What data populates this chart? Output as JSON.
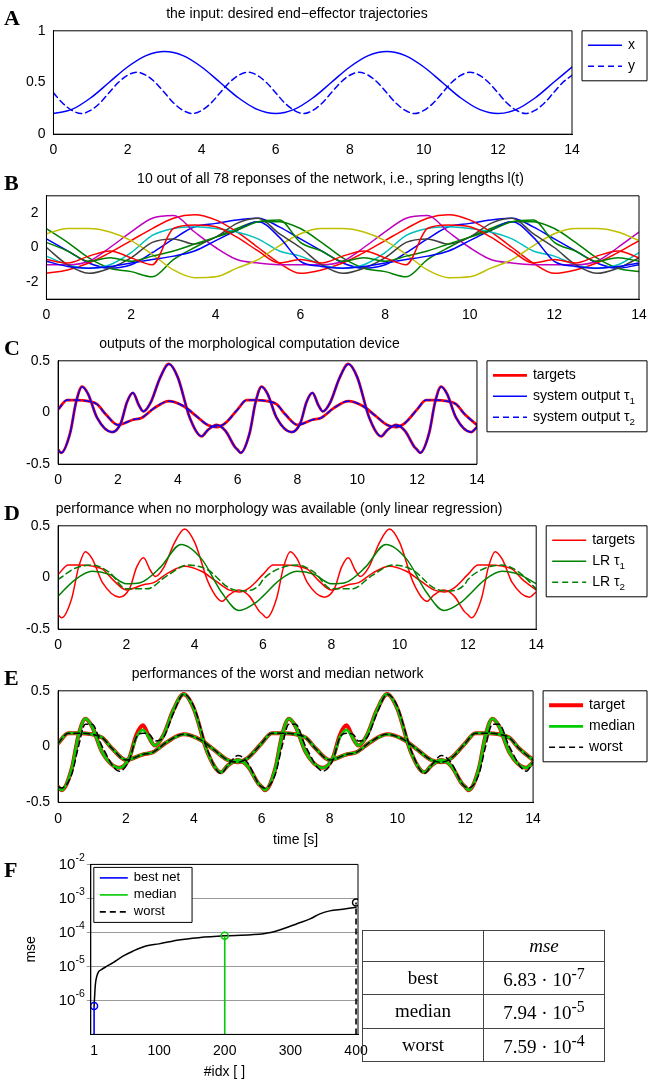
{
  "chart_data": [
    {
      "type": "line",
      "title": "the input: desired end−effector trajectories",
      "annotations": [
        "A"
      ],
      "x": [
        0,
        0.5,
        1,
        1.5,
        2,
        2.5,
        3,
        3.5,
        4,
        4.5,
        5,
        5.5,
        6,
        6.5,
        7,
        7.5,
        8,
        8.5,
        9,
        9.5,
        10,
        10.5,
        11,
        11.5,
        12,
        12.5,
        13,
        13.5,
        14
      ],
      "xlim": [
        0,
        14
      ],
      "xticks": [
        0,
        2,
        4,
        6,
        8,
        10,
        12,
        14
      ],
      "ylim": [
        0,
        1
      ],
      "yticks": [
        0,
        0.5,
        1
      ],
      "legend": "right",
      "series": [
        {
          "name": "x",
          "color": "#0000ff",
          "values": [
            0.2,
            0.24,
            0.35,
            0.5,
            0.65,
            0.76,
            0.8,
            0.76,
            0.65,
            0.5,
            0.35,
            0.24,
            0.2,
            0.24,
            0.35,
            0.5,
            0.65,
            0.76,
            0.8,
            0.76,
            0.65,
            0.5,
            0.35,
            0.24,
            0.2,
            0.24,
            0.35,
            0.5,
            0.65
          ]
        },
        {
          "name": "y",
          "color": "#0000ff",
          "line_style": "dashed",
          "x": [
            0,
            0.25,
            0.5,
            0.75,
            1,
            1.25,
            1.5,
            1.75,
            2,
            2.25,
            2.5,
            2.75,
            3,
            3.25,
            3.5,
            3.75,
            4,
            4.25,
            4.5,
            4.75,
            5,
            5.25,
            5.5,
            5.75,
            6,
            6.25,
            6.5,
            6.75,
            7,
            7.25,
            7.5,
            7.75,
            8,
            8.25,
            8.5,
            8.75,
            9,
            9.25,
            9.5,
            9.75,
            10,
            10.25,
            10.5,
            10.75,
            11,
            11.25,
            11.5,
            11.75,
            12,
            12.25,
            12.5,
            12.75,
            13,
            13.25,
            13.5,
            13.75,
            14
          ],
          "values": [
            0.4,
            0.3,
            0.23,
            0.2,
            0.23,
            0.3,
            0.4,
            0.5,
            0.57,
            0.6,
            0.57,
            0.5,
            0.4,
            0.3,
            0.23,
            0.2,
            0.23,
            0.3,
            0.4,
            0.5,
            0.57,
            0.6,
            0.57,
            0.5,
            0.4,
            0.3,
            0.23,
            0.2,
            0.23,
            0.3,
            0.4,
            0.5,
            0.57,
            0.6,
            0.57,
            0.5,
            0.4,
            0.3,
            0.23,
            0.2,
            0.23,
            0.3,
            0.4,
            0.5,
            0.57,
            0.6,
            0.57,
            0.5,
            0.4,
            0.3,
            0.23,
            0.2,
            0.23,
            0.3,
            0.4,
            0.5,
            0.57
          ]
        }
      ]
    },
    {
      "type": "line",
      "title": "10 out of all 78 reponses of the network, i.e., spring lengths l(t)",
      "annotations": [
        "B"
      ],
      "x": [
        0,
        0.5,
        1,
        1.5,
        2,
        2.5,
        3,
        3.5,
        4,
        4.5,
        5,
        5.5,
        6,
        6.5,
        7,
        7.5,
        8,
        8.5,
        9,
        9.5,
        10,
        10.5,
        11,
        11.5,
        12,
        12.5,
        13,
        13.5,
        14
      ],
      "xlim": [
        0,
        14
      ],
      "xticks": [
        0,
        2,
        4,
        6,
        8,
        10,
        12,
        14
      ],
      "ylim": [
        -3,
        3
      ],
      "yticks": [
        -2,
        0,
        2
      ],
      "series": [
        {
          "color": "#0000ff",
          "values": [
            0.5,
            -0.2,
            -0.9,
            -1.2,
            -1.0,
            -0.3,
            0.5,
            1.2,
            1.4,
            1.6,
            1.7,
            1.2,
            0.5,
            -0.2,
            -0.9,
            -1.2,
            -1.0,
            -0.3,
            0.5,
            1.2,
            1.4,
            1.6,
            1.7,
            1.2,
            0.5,
            -0.2,
            -0.9,
            -1.2,
            -1.0
          ]
        },
        {
          "color": "#008000",
          "values": [
            1.1,
            0.3,
            -0.6,
            -1.2,
            -1.4,
            -1.7,
            -0.7,
            0.0,
            0.6,
            1.1,
            1.5,
            1.5,
            1.1,
            0.3,
            -0.6,
            -1.2,
            -1.4,
            -1.7,
            -0.7,
            0.0,
            0.6,
            1.1,
            1.5,
            1.5,
            1.1,
            0.3,
            -0.6,
            -1.2,
            -1.4
          ]
        },
        {
          "color": "#ff0000",
          "values": [
            -1.5,
            -1.3,
            -0.9,
            -0.3,
            0.4,
            1.1,
            1.7,
            1.9,
            1.6,
            0.9,
            0.0,
            -0.9,
            -1.5,
            -1.3,
            -0.9,
            -0.3,
            0.4,
            1.1,
            1.7,
            1.9,
            1.6,
            0.9,
            0.0,
            -0.9,
            -1.5,
            -1.3,
            -0.9,
            -0.3,
            0.4
          ]
        },
        {
          "color": "#00bfbf",
          "values": [
            -0.5,
            -1.0,
            -1.2,
            -1.0,
            -0.3,
            0.7,
            1.1,
            1.2,
            1.1,
            0.9,
            0.5,
            -0.2,
            -0.5,
            -1.0,
            -1.2,
            -1.0,
            -0.3,
            0.7,
            1.1,
            1.2,
            1.1,
            0.9,
            0.5,
            -0.2,
            -0.5,
            -1.0,
            -1.2,
            -1.0,
            -0.3
          ]
        },
        {
          "color": "#bf00bf",
          "values": [
            -1.0,
            -1.0,
            -0.8,
            0.0,
            0.9,
            1.7,
            1.85,
            0.9,
            0.0,
            -0.7,
            -0.9,
            -1.0,
            -1.0,
            -1.0,
            -0.8,
            0.0,
            0.9,
            1.7,
            1.85,
            0.9,
            0.0,
            -0.7,
            -0.9,
            -1.0,
            -1.0,
            -1.0,
            -0.8,
            0.0,
            0.9
          ]
        },
        {
          "color": "#bfbf00",
          "values": [
            0.8,
            1.1,
            1.1,
            0.9,
            0.4,
            -0.4,
            -1.3,
            -1.75,
            -1.7,
            -1.2,
            -0.7,
            0.1,
            0.8,
            1.1,
            1.1,
            0.9,
            0.4,
            -0.4,
            -1.3,
            -1.75,
            -1.7,
            -1.2,
            -0.7,
            0.1,
            0.8,
            1.1,
            1.1,
            0.9,
            0.4
          ]
        },
        {
          "color": "#404040",
          "values": [
            0.0,
            -1.0,
            -1.5,
            -1.2,
            -0.6,
            0.3,
            0.5,
            0.2,
            0.6,
            1.4,
            1.7,
            0.8,
            0.0,
            -1.0,
            -1.5,
            -1.2,
            -0.6,
            0.3,
            0.5,
            0.2,
            0.6,
            1.4,
            1.7,
            0.8,
            0.0,
            -1.0,
            -1.5,
            -1.2,
            -0.6
          ]
        },
        {
          "color": "#0000ff",
          "values": [
            -0.8,
            -1.1,
            -1.2,
            -1.1,
            -0.9,
            -0.7,
            -0.5,
            -0.2,
            0.4,
            1.0,
            1.5,
            0.6,
            -0.8,
            -1.1,
            -1.2,
            -1.1,
            -0.9,
            -0.7,
            -0.5,
            -0.2,
            0.4,
            1.0,
            1.5,
            0.6,
            -0.8,
            -1.1,
            -1.2,
            -1.1,
            -0.9
          ]
        },
        {
          "color": "#008000",
          "values": [
            0.3,
            -0.2,
            -0.8,
            -0.6,
            -0.8,
            -0.5,
            -0.2,
            0.2,
            0.6,
            1.0,
            1.5,
            1.6,
            0.3,
            -0.2,
            -0.8,
            -0.6,
            -0.8,
            -0.5,
            -0.2,
            0.2,
            0.6,
            1.0,
            1.5,
            1.6,
            0.3,
            -0.2,
            -0.8,
            -0.6,
            -0.8
          ]
        },
        {
          "color": "#ff0000",
          "values": [
            -0.7,
            -0.9,
            -0.5,
            -0.2,
            -0.6,
            -1.0,
            1.1,
            1.3,
            1.2,
            0.6,
            -0.2,
            -0.9,
            -0.7,
            -0.9,
            -0.5,
            -0.2,
            -0.6,
            -1.0,
            1.1,
            1.3,
            1.2,
            0.6,
            -0.2,
            -0.9,
            -0.7,
            -0.9,
            -0.5,
            -0.2,
            -0.6
          ]
        }
      ]
    },
    {
      "type": "line",
      "title": "outputs of the morphological computation device",
      "annotations": [
        "C"
      ],
      "xlim": [
        0,
        14
      ],
      "xticks": [
        0,
        2,
        4,
        6,
        8,
        10,
        12,
        14
      ],
      "ylim": [
        -0.5,
        0.5
      ],
      "yticks": [
        -0.5,
        0,
        0.5
      ],
      "legend": "right",
      "series": [
        {
          "name": "targets",
          "color": "#ff0000",
          "x": [
            0,
            0.1,
            0.4,
            0.6,
            0.8,
            1,
            1.3,
            1.8,
            2.1,
            2.3,
            2.5,
            2.7,
            2.85,
            3.1,
            3.4,
            3.7,
            4,
            4.4,
            4.8,
            5,
            5.3,
            5.6,
            5.9,
            6,
            6.1,
            6.4,
            6.6,
            6.8,
            7,
            7.3,
            7.8,
            8.1,
            8.3,
            8.5,
            8.7,
            8.85,
            9.1,
            9.4,
            9.7,
            10,
            10.4,
            10.8,
            11,
            11.3,
            11.6,
            11.9,
            12,
            12.1,
            12.4,
            12.6,
            12.8,
            13,
            13.3,
            13.8,
            14
          ],
          "values": [
            -0.36,
            -0.39,
            -0.2,
            0.1,
            0.25,
            0.18,
            -0.05,
            -0.19,
            -0.1,
            0.1,
            0.19,
            0.07,
            0.01,
            0.1,
            0.33,
            0.47,
            0.34,
            -0.05,
            -0.23,
            -0.17,
            -0.12,
            -0.18,
            -0.33,
            -0.36,
            -0.39,
            -0.2,
            0.1,
            0.25,
            0.18,
            -0.05,
            -0.19,
            -0.1,
            0.1,
            0.19,
            0.07,
            0.01,
            0.1,
            0.33,
            0.47,
            0.34,
            -0.05,
            -0.23,
            -0.17,
            -0.12,
            -0.18,
            -0.33,
            -0.36,
            -0.39,
            -0.2,
            0.1,
            0.25,
            0.18,
            -0.05,
            -0.19,
            -0.14
          ]
        },
        {
          "color": "#ff0000",
          "x": [
            0,
            0.3,
            0.6,
            1,
            1.3,
            1.6,
            2,
            2.5,
            2.8,
            3.2,
            3.7,
            4.2,
            4.6,
            5,
            5.3,
            5.6,
            6,
            6.3,
            6.6,
            7,
            7.3,
            7.6,
            8,
            8.5,
            8.8,
            9.2,
            9.7,
            10.2,
            10.6,
            11,
            11.3,
            11.6,
            12,
            12.3,
            12.6,
            13,
            13.3,
            13.6,
            14
          ],
          "values": [
            0.03,
            0.12,
            0.12,
            0.11,
            0.08,
            -0.02,
            -0.12,
            -0.07,
            -0.05,
            0.04,
            0.11,
            0.06,
            -0.03,
            -0.12,
            -0.14,
            -0.1,
            0.03,
            0.12,
            0.12,
            0.11,
            0.08,
            -0.02,
            -0.12,
            -0.07,
            -0.05,
            0.04,
            0.11,
            0.06,
            -0.03,
            -0.12,
            -0.14,
            -0.1,
            0.03,
            0.12,
            0.12,
            0.11,
            0.08,
            -0.02,
            -0.12
          ]
        },
        {
          "name": "system output τ$_{1}$",
          "color": "#0000ff",
          "x": [
            0,
            0.1,
            0.4,
            0.6,
            0.8,
            1,
            1.3,
            1.8,
            2.1,
            2.3,
            2.5,
            2.7,
            2.85,
            3.1,
            3.4,
            3.7,
            4,
            4.4,
            4.8,
            5,
            5.3,
            5.6,
            5.9,
            6,
            6.1,
            6.4,
            6.6,
            6.8,
            7,
            7.3,
            7.8,
            8.1,
            8.3,
            8.5,
            8.7,
            8.85,
            9.1,
            9.4,
            9.7,
            10,
            10.4,
            10.8,
            11,
            11.3,
            11.6,
            11.9,
            12,
            12.1,
            12.4,
            12.6,
            12.8,
            13,
            13.3,
            13.8,
            14
          ],
          "values": [
            -0.36,
            -0.39,
            -0.2,
            0.1,
            0.25,
            0.18,
            -0.05,
            -0.19,
            -0.1,
            0.1,
            0.19,
            0.07,
            0.01,
            0.1,
            0.33,
            0.47,
            0.34,
            -0.05,
            -0.23,
            -0.17,
            -0.12,
            -0.18,
            -0.33,
            -0.36,
            -0.39,
            -0.2,
            0.1,
            0.25,
            0.18,
            -0.05,
            -0.19,
            -0.1,
            0.1,
            0.19,
            0.07,
            0.01,
            0.1,
            0.33,
            0.47,
            0.34,
            -0.05,
            -0.23,
            -0.17,
            -0.12,
            -0.18,
            -0.33,
            -0.36,
            -0.39,
            -0.2,
            0.1,
            0.25,
            0.18,
            -0.05,
            -0.19,
            -0.14
          ]
        },
        {
          "name": "system output τ$_{2}$",
          "color": "#0000ff",
          "line_style": "dashed",
          "x": [
            0,
            0.3,
            0.6,
            1,
            1.3,
            1.6,
            2,
            2.5,
            2.8,
            3.2,
            3.7,
            4.2,
            4.6,
            5,
            5.3,
            5.6,
            6,
            6.3,
            6.6,
            7,
            7.3,
            7.6,
            8,
            8.5,
            8.8,
            9.2,
            9.7,
            10.2,
            10.6,
            11,
            11.3,
            11.6,
            12,
            12.3,
            12.6,
            13,
            13.3,
            13.6,
            14
          ],
          "values": [
            0.03,
            0.12,
            0.12,
            0.11,
            0.08,
            -0.02,
            -0.12,
            -0.07,
            -0.05,
            0.04,
            0.11,
            0.06,
            -0.03,
            -0.12,
            -0.14,
            -0.1,
            0.03,
            0.12,
            0.12,
            0.11,
            0.08,
            -0.02,
            -0.12,
            -0.07,
            -0.05,
            0.04,
            0.11,
            0.06,
            -0.03,
            -0.12,
            -0.14,
            -0.1,
            0.03,
            0.12,
            0.12,
            0.11,
            0.08,
            -0.02,
            -0.12
          ]
        }
      ]
    },
    {
      "type": "line",
      "title": "performance when no morphology was available (only linear regression)",
      "annotations": [
        "D"
      ],
      "xlim": [
        0,
        14
      ],
      "xticks": [
        0,
        2,
        4,
        6,
        8,
        10,
        12,
        14
      ],
      "ylim": [
        -0.5,
        0.5
      ],
      "yticks": [
        -0.5,
        0,
        0.5
      ],
      "legend": "right",
      "series": [
        {
          "name": "targets",
          "color": "#ff0000",
          "x": [
            0,
            0.1,
            0.4,
            0.6,
            0.8,
            1,
            1.3,
            1.8,
            2.1,
            2.3,
            2.5,
            2.7,
            2.85,
            3.1,
            3.4,
            3.7,
            4,
            4.4,
            4.8,
            5,
            5.3,
            5.6,
            5.9,
            6,
            6.1,
            6.4,
            6.6,
            6.8,
            7,
            7.3,
            7.8,
            8.1,
            8.3,
            8.5,
            8.7,
            8.85,
            9.1,
            9.4,
            9.7,
            10,
            10.4,
            10.8,
            11,
            11.3,
            11.6,
            11.9,
            12,
            12.1,
            12.4,
            12.6,
            12.8,
            13,
            13.3,
            13.8,
            14
          ],
          "values": [
            -0.36,
            -0.39,
            -0.2,
            0.1,
            0.25,
            0.18,
            -0.05,
            -0.19,
            -0.1,
            0.1,
            0.19,
            0.07,
            0.01,
            0.1,
            0.33,
            0.47,
            0.34,
            -0.05,
            -0.23,
            -0.17,
            -0.12,
            -0.18,
            -0.33,
            -0.36,
            -0.39,
            -0.2,
            0.1,
            0.25,
            0.18,
            -0.05,
            -0.19,
            -0.1,
            0.1,
            0.19,
            0.07,
            0.01,
            0.1,
            0.33,
            0.47,
            0.34,
            -0.05,
            -0.23,
            -0.17,
            -0.12,
            -0.18,
            -0.33,
            -0.36,
            -0.39,
            -0.2,
            0.1,
            0.25,
            0.18,
            -0.05,
            -0.19,
            -0.14
          ]
        },
        {
          "color": "#ff0000",
          "x": [
            0,
            0.3,
            0.6,
            1,
            1.3,
            1.6,
            2,
            2.5,
            2.8,
            3.2,
            3.7,
            4.2,
            4.6,
            5,
            5.3,
            5.6,
            6,
            6.3,
            6.6,
            7,
            7.3,
            7.6,
            8,
            8.5,
            8.8,
            9.2,
            9.7,
            10.2,
            10.6,
            11,
            11.3,
            11.6,
            12,
            12.3,
            12.6,
            13,
            13.3,
            13.6,
            14
          ],
          "values": [
            0.03,
            0.12,
            0.12,
            0.11,
            0.08,
            -0.02,
            -0.12,
            -0.07,
            -0.05,
            0.04,
            0.11,
            0.06,
            -0.03,
            -0.12,
            -0.14,
            -0.1,
            0.03,
            0.12,
            0.12,
            0.11,
            0.08,
            -0.02,
            -0.12,
            -0.07,
            -0.05,
            0.04,
            0.11,
            0.06,
            -0.03,
            -0.12,
            -0.14,
            -0.1,
            0.03,
            0.12,
            0.12,
            0.11,
            0.08,
            -0.02,
            -0.12
          ]
        },
        {
          "name": "LR τ$_{1}$",
          "color": "#008000",
          "x": [
            0,
            0.5,
            1,
            1.5,
            2,
            2.4,
            3,
            3.6,
            4.2,
            4.8,
            5.3,
            5.8,
            6,
            6.5,
            7,
            7.5,
            8,
            8.4,
            9,
            9.6,
            10.2,
            10.8,
            11.3,
            11.8,
            12,
            12.5,
            13,
            13.5,
            14
          ],
          "values": [
            -0.18,
            -0.02,
            0.06,
            0.03,
            -0.06,
            -0.05,
            0.1,
            0.32,
            0.18,
            -0.15,
            -0.32,
            -0.24,
            -0.18,
            -0.02,
            0.06,
            0.03,
            -0.06,
            -0.05,
            0.1,
            0.32,
            0.18,
            -0.15,
            -0.32,
            -0.24,
            -0.18,
            -0.02,
            0.06,
            0.03,
            -0.06
          ]
        },
        {
          "name": "LR τ$_{2}$",
          "color": "#008000",
          "line_style": "dashed",
          "x": [
            0,
            0.5,
            1,
            1.5,
            2,
            2.6,
            3.2,
            3.8,
            4.4,
            5,
            5.5,
            5.9,
            6,
            6.5,
            7,
            7.5,
            8,
            8.6,
            9.2,
            9.8,
            10.4,
            11,
            11.5,
            11.9,
            12,
            12.5,
            13,
            13.5,
            14
          ],
          "values": [
            -0.02,
            0.09,
            0.12,
            0.05,
            -0.11,
            -0.11,
            0.02,
            0.12,
            0.07,
            -0.1,
            -0.13,
            -0.07,
            -0.02,
            0.09,
            0.12,
            0.05,
            -0.11,
            -0.11,
            0.02,
            0.12,
            0.07,
            -0.1,
            -0.13,
            -0.07,
            -0.02,
            0.09,
            0.12,
            0.05,
            -0.11
          ]
        }
      ]
    },
    {
      "type": "line",
      "title": "performances of the worst and median network",
      "annotations": [
        "E"
      ],
      "xlabel": "time [s]",
      "xlim": [
        0,
        14
      ],
      "xticks": [
        0,
        2,
        4,
        6,
        8,
        10,
        12,
        14
      ],
      "ylim": [
        -0.5,
        0.5
      ],
      "yticks": [
        -0.5,
        0,
        0.5
      ],
      "legend": "right",
      "series": [
        {
          "name": "target",
          "color": "#ff0000",
          "x": [
            0,
            0.1,
            0.4,
            0.6,
            0.8,
            1,
            1.3,
            1.8,
            2.1,
            2.3,
            2.5,
            2.7,
            2.85,
            3.1,
            3.4,
            3.7,
            4,
            4.4,
            4.8,
            5,
            5.3,
            5.6,
            5.9,
            6,
            6.1,
            6.4,
            6.6,
            6.8,
            7,
            7.3,
            7.8,
            8.1,
            8.3,
            8.5,
            8.7,
            8.85,
            9.1,
            9.4,
            9.7,
            10,
            10.4,
            10.8,
            11,
            11.3,
            11.6,
            11.9,
            12,
            12.1,
            12.4,
            12.6,
            12.8,
            13,
            13.3,
            13.8,
            14
          ],
          "values": [
            -0.36,
            -0.39,
            -0.2,
            0.1,
            0.25,
            0.18,
            -0.05,
            -0.19,
            -0.1,
            0.1,
            0.19,
            0.07,
            0.01,
            0.1,
            0.33,
            0.47,
            0.34,
            -0.05,
            -0.23,
            -0.17,
            -0.12,
            -0.18,
            -0.33,
            -0.36,
            -0.39,
            -0.2,
            0.1,
            0.25,
            0.18,
            -0.05,
            -0.19,
            -0.1,
            0.1,
            0.19,
            0.07,
            0.01,
            0.1,
            0.33,
            0.47,
            0.34,
            -0.05,
            -0.23,
            -0.17,
            -0.12,
            -0.18,
            -0.33,
            -0.36,
            -0.39,
            -0.2,
            0.1,
            0.25,
            0.18,
            -0.05,
            -0.19,
            -0.14
          ]
        },
        {
          "color": "#ff0000",
          "x": [
            0,
            0.3,
            0.6,
            1,
            1.3,
            1.6,
            2,
            2.5,
            2.8,
            3.2,
            3.7,
            4.2,
            4.6,
            5,
            5.3,
            5.6,
            6,
            6.3,
            6.6,
            7,
            7.3,
            7.6,
            8,
            8.5,
            8.8,
            9.2,
            9.7,
            10.2,
            10.6,
            11,
            11.3,
            11.6,
            12,
            12.3,
            12.6,
            13,
            13.3,
            13.6,
            14
          ],
          "values": [
            0.03,
            0.12,
            0.12,
            0.11,
            0.08,
            -0.02,
            -0.12,
            -0.07,
            -0.05,
            0.04,
            0.11,
            0.06,
            -0.03,
            -0.12,
            -0.14,
            -0.1,
            0.03,
            0.12,
            0.12,
            0.11,
            0.08,
            -0.02,
            -0.12,
            -0.07,
            -0.05,
            0.04,
            0.11,
            0.06,
            -0.03,
            -0.12,
            -0.14,
            -0.1,
            0.03,
            0.12,
            0.12,
            0.11,
            0.08,
            -0.02,
            -0.12
          ]
        },
        {
          "name": "median",
          "color": "#00cc00",
          "x": [
            0,
            0.1,
            0.4,
            0.6,
            0.8,
            1,
            1.3,
            1.8,
            2.1,
            2.3,
            2.5,
            2.7,
            2.85,
            3.1,
            3.4,
            3.7,
            4,
            4.4,
            4.8,
            5,
            5.3,
            5.6,
            5.9,
            6,
            6.1,
            6.4,
            6.6,
            6.8,
            7,
            7.3,
            7.8,
            8.1,
            8.3,
            8.5,
            8.7,
            8.85,
            9.1,
            9.4,
            9.7,
            10,
            10.4,
            10.8,
            11,
            11.3,
            11.6,
            11.9,
            12,
            12.1,
            12.4,
            12.6,
            12.8,
            13,
            13.3,
            13.8,
            14
          ],
          "values": [
            -0.36,
            -0.39,
            -0.2,
            0.1,
            0.25,
            0.18,
            -0.05,
            -0.19,
            -0.1,
            0.08,
            0.15,
            0.07,
            0.01,
            0.1,
            0.33,
            0.47,
            0.34,
            -0.05,
            -0.23,
            -0.17,
            -0.12,
            -0.18,
            -0.33,
            -0.36,
            -0.39,
            -0.2,
            0.1,
            0.25,
            0.18,
            -0.05,
            -0.19,
            -0.1,
            0.08,
            0.15,
            0.07,
            0.01,
            0.1,
            0.33,
            0.47,
            0.34,
            -0.05,
            -0.23,
            -0.17,
            -0.12,
            -0.18,
            -0.33,
            -0.36,
            -0.39,
            -0.2,
            0.1,
            0.25,
            0.18,
            -0.05,
            -0.19,
            -0.14
          ]
        },
        {
          "color": "#00cc00",
          "x": [
            0,
            0.3,
            0.6,
            1,
            1.3,
            1.6,
            2,
            2.5,
            2.8,
            3.2,
            3.7,
            4.2,
            4.6,
            5,
            5.3,
            5.6,
            6,
            6.3,
            6.6,
            7,
            7.3,
            7.6,
            8,
            8.5,
            8.8,
            9.2,
            9.7,
            10.2,
            10.6,
            11,
            11.3,
            11.6,
            12,
            12.3,
            12.6,
            13,
            13.3,
            13.6,
            14
          ],
          "values": [
            0.03,
            0.12,
            0.12,
            0.11,
            0.08,
            -0.02,
            -0.12,
            -0.07,
            -0.05,
            0.04,
            0.11,
            0.06,
            -0.03,
            -0.12,
            -0.14,
            -0.1,
            0.03,
            0.12,
            0.12,
            0.11,
            0.08,
            -0.02,
            -0.12,
            -0.07,
            -0.05,
            0.04,
            0.11,
            0.06,
            -0.03,
            -0.12,
            -0.14,
            -0.1,
            0.03,
            0.12,
            0.12,
            0.11,
            0.08,
            -0.02,
            -0.12
          ]
        },
        {
          "name": "worst",
          "color": "#000000",
          "line_style": "dashed",
          "x": [
            0,
            0.1,
            0.4,
            0.6,
            0.8,
            1,
            1.3,
            1.8,
            2.1,
            2.3,
            2.5,
            2.7,
            2.85,
            3.1,
            3.4,
            3.7,
            4,
            4.4,
            4.8,
            5,
            5.3,
            5.6,
            5.9,
            6,
            6.1,
            6.4,
            6.6,
            6.8,
            7,
            7.3,
            7.8,
            8.1,
            8.3,
            8.5,
            8.7,
            8.85,
            9.1,
            9.4,
            9.7,
            10,
            10.4,
            10.8,
            11,
            11.3,
            11.6,
            11.9,
            12,
            12.1,
            12.4,
            12.6,
            12.8,
            13,
            13.3,
            13.8,
            14
          ],
          "values": [
            -0.36,
            -0.37,
            -0.25,
            0,
            0.2,
            0.2,
            0,
            -0.22,
            -0.12,
            0.08,
            0.12,
            0.11,
            0.05,
            0.08,
            0.3,
            0.47,
            0.36,
            -0.03,
            -0.24,
            -0.17,
            -0.08,
            -0.15,
            -0.33,
            -0.36,
            -0.37,
            -0.25,
            0,
            0.2,
            0.2,
            0,
            -0.22,
            -0.12,
            0.08,
            0.12,
            0.11,
            0.05,
            0.08,
            0.3,
            0.47,
            0.36,
            -0.03,
            -0.24,
            -0.17,
            -0.08,
            -0.15,
            -0.33,
            -0.36,
            -0.37,
            -0.25,
            0,
            0.2,
            0.2,
            0,
            -0.22,
            -0.14
          ]
        },
        {
          "color": "#000000",
          "line_style": "dashed",
          "x": [
            0,
            0.3,
            0.6,
            1,
            1.3,
            1.6,
            2,
            2.5,
            2.8,
            3.2,
            3.7,
            4.2,
            4.6,
            5,
            5.3,
            5.6,
            6,
            6.3,
            6.6,
            7,
            7.3,
            7.6,
            8,
            8.5,
            8.8,
            9.2,
            9.7,
            10.2,
            10.6,
            11,
            11.3,
            11.6,
            12,
            12.3,
            12.6,
            13,
            13.3,
            13.6,
            14
          ],
          "values": [
            0.03,
            0.12,
            0.12,
            0.11,
            0.08,
            -0.02,
            -0.12,
            -0.07,
            -0.05,
            0.04,
            0.11,
            0.06,
            -0.03,
            -0.12,
            -0.14,
            -0.1,
            0.03,
            0.12,
            0.12,
            0.11,
            0.08,
            -0.02,
            -0.12,
            -0.07,
            -0.05,
            0.04,
            0.11,
            0.06,
            -0.03,
            -0.12,
            -0.14,
            -0.1,
            0.03,
            0.12,
            0.12,
            0.11,
            0.08,
            -0.02,
            -0.12
          ]
        }
      ]
    },
    {
      "type": "line",
      "annotations": [
        "F"
      ],
      "xlabel": "#idx [ ]",
      "ylabel": "mse",
      "log": "y",
      "grid": "y",
      "legend": "top left",
      "xlim": [
        -4,
        403
      ],
      "xticks": [
        1,
        100,
        200,
        300,
        400
      ],
      "ylim": [
        1e-07,
        0.01
      ],
      "yticks": [
        {
          "value": 0.01,
          "label": "10$^{-2}$"
        },
        {
          "value": 0.001,
          "label": "10$^{-3}$"
        },
        {
          "value": 0.0001,
          "label": "10$^{-4}$"
        },
        {
          "value": 1e-05,
          "label": "10$^{-5}$"
        },
        {
          "value": 1e-06,
          "label": "10$^{-6}$"
        }
      ],
      "series": [
        {
          "color": "#000000",
          "x": [
            1,
            2,
            3,
            5,
            8,
            12,
            20,
            30,
            45,
            60,
            80,
            100,
            130,
            160,
            200,
            240,
            270,
            290,
            310,
            330,
            345,
            360,
            380,
            395,
            400
          ],
          "values": [
            6.83e-07,
            1.5e-06,
            3e-06,
            5e-06,
            7e-06,
            8e-06,
            1e-05,
            1.3e-05,
            2e-05,
            2.8e-05,
            4e-05,
            4.6e-05,
            6e-05,
            7e-05,
            7.94e-05,
            8.5e-05,
            0.0001,
            0.00013,
            0.00018,
            0.00025,
            0.00035,
            0.00043,
            0.00048,
            0.00053,
            0.00055
          ]
        },
        {
          "type": "lollipop",
          "name": "best net",
          "color": "#0000ff",
          "x": [
            1
          ],
          "values": [
            6.83e-07
          ]
        },
        {
          "type": "lollipop",
          "name": "median",
          "color": "#00cc00",
          "x": [
            200
          ],
          "values": [
            7.94e-05
          ]
        },
        {
          "type": "lollipop",
          "name": "worst",
          "color": "#000000",
          "line_style": "dashed",
          "x": [
            400
          ],
          "values": [
            0.000759
          ]
        }
      ]
    },
    {
      "type": "other",
      "xlabel": "mse",
      "categories": [
        "best",
        "median",
        "worst"
      ],
      "value_labels": [
        "6.83 · 10$^{-7}$",
        "7.94 · 10$^{-5}$",
        "7.59 · 10$^{-4}$"
      ]
    }
  ]
}
